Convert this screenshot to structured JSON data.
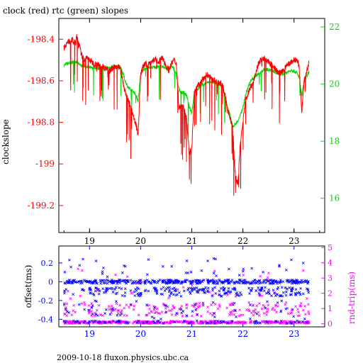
{
  "title": "clock (red) rtc (green) slopes",
  "footer": "2009-10-18 fluxon.physics.ubc.ca",
  "colors": {
    "clock": "#ff0000",
    "rtc": "#00dd00",
    "offset": "#0000ff",
    "rtt": "#ff00ff",
    "axis": "#000000"
  },
  "chart_data": [
    {
      "type": "line",
      "title": "clock (red) rtc (green) slopes",
      "ylabel": "clockslope",
      "x_ticks": [
        "19",
        "20",
        "21",
        "22",
        "23"
      ],
      "xlim": [
        18.4,
        23.6
      ],
      "y_left": {
        "ticks": [
          "-198.4",
          "-198.6",
          "-198.8",
          "-199",
          "-199.2"
        ],
        "tick_values": [
          -198.4,
          -198.6,
          -198.8,
          -199,
          -199.2
        ],
        "range": [
          -199.33,
          -198.3
        ]
      },
      "y_right": {
        "ticks": [
          "22",
          "20",
          "18",
          "16"
        ],
        "tick_values": [
          22,
          20,
          18,
          16
        ],
        "range": [
          14.8,
          22.3
        ]
      },
      "series": [
        {
          "name": "clock",
          "color": "#ff0000",
          "x": [
            18.5,
            18.55,
            18.6,
            18.65,
            18.7,
            18.75,
            18.8,
            18.85,
            18.9,
            18.95,
            19.0,
            19.05,
            19.1,
            19.15,
            19.2,
            19.25,
            19.3,
            19.35,
            19.4,
            19.45,
            19.5,
            19.55,
            19.6,
            19.65,
            19.7,
            19.75,
            19.8,
            19.85,
            19.9,
            19.95,
            20.0,
            20.05,
            20.1,
            20.15,
            20.2,
            20.25,
            20.3,
            20.35,
            20.4,
            20.45,
            20.5,
            20.55,
            20.6,
            20.65,
            20.7,
            20.75,
            20.8,
            20.85,
            20.9,
            20.95,
            21.0,
            21.05,
            21.1,
            21.15,
            21.2,
            21.25,
            21.3,
            21.35,
            21.4,
            21.45,
            21.5,
            21.55,
            21.6,
            21.65,
            21.7,
            21.75,
            21.8,
            21.85,
            21.9,
            21.95,
            22.0,
            22.05,
            22.1,
            22.15,
            22.2,
            22.25,
            22.3,
            22.35,
            22.4,
            22.45,
            22.5,
            22.55,
            22.6,
            22.65,
            22.7,
            22.75,
            22.8,
            22.85,
            22.9,
            22.95,
            23.0,
            23.05,
            23.1,
            23.15,
            23.2,
            23.25,
            23.3
          ],
          "y": [
            -198.44,
            -198.42,
            -198.41,
            -198.4,
            -198.42,
            -198.39,
            -198.43,
            -198.48,
            -198.5,
            -198.49,
            -198.5,
            -198.51,
            -198.52,
            -198.52,
            -198.53,
            -198.53,
            -198.54,
            -198.54,
            -198.55,
            -198.54,
            -198.53,
            -198.53,
            -198.54,
            -198.6,
            -198.66,
            -198.69,
            -198.72,
            -198.77,
            -198.8,
            -198.86,
            -198.57,
            -198.53,
            -198.52,
            -198.52,
            -198.51,
            -198.5,
            -198.5,
            -198.51,
            -198.49,
            -198.5,
            -198.53,
            -198.55,
            -198.52,
            -198.5,
            -198.52,
            -198.73,
            -198.72,
            -198.73,
            -198.78,
            -198.95,
            -198.93,
            -198.66,
            -198.63,
            -198.62,
            -198.6,
            -198.58,
            -198.57,
            -198.58,
            -198.59,
            -198.6,
            -198.61,
            -198.61,
            -198.62,
            -198.67,
            -198.74,
            -198.78,
            -198.83,
            -199.05,
            -199.1,
            -198.9,
            -198.8,
            -198.69,
            -198.66,
            -198.63,
            -198.61,
            -198.57,
            -198.52,
            -198.5,
            -198.49,
            -198.5,
            -198.51,
            -198.52,
            -198.53,
            -198.55,
            -198.56,
            -198.56,
            -198.55,
            -198.53,
            -198.52,
            -198.51,
            -198.5,
            -198.5,
            -198.53,
            -198.75,
            -198.6,
            -198.55,
            -198.51
          ]
        },
        {
          "name": "rtc",
          "color": "#00dd00",
          "x": [
            18.5,
            18.55,
            18.6,
            18.65,
            18.7,
            18.75,
            18.8,
            18.85,
            18.9,
            18.95,
            19.0,
            19.05,
            19.1,
            19.15,
            19.2,
            19.25,
            19.3,
            19.35,
            19.4,
            19.45,
            19.5,
            19.55,
            19.6,
            19.65,
            19.7,
            19.75,
            19.8,
            19.85,
            19.9,
            19.95,
            20.0,
            20.05,
            20.1,
            20.15,
            20.2,
            20.25,
            20.3,
            20.35,
            20.4,
            20.45,
            20.5,
            20.55,
            20.6,
            20.65,
            20.7,
            20.75,
            20.8,
            20.85,
            20.9,
            20.95,
            21.0,
            21.05,
            21.1,
            21.15,
            21.2,
            21.25,
            21.3,
            21.35,
            21.4,
            21.45,
            21.5,
            21.55,
            21.6,
            21.65,
            21.7,
            21.75,
            21.8,
            21.85,
            21.9,
            21.95,
            22.0,
            22.05,
            22.1,
            22.15,
            22.2,
            22.25,
            22.3,
            22.35,
            22.4,
            22.45,
            22.5,
            22.55,
            22.6,
            22.65,
            22.7,
            22.75,
            22.8,
            22.85,
            22.9,
            22.95,
            23.0,
            23.05,
            23.1,
            23.15,
            23.2,
            23.25,
            23.3
          ],
          "y": [
            20.65,
            20.72,
            20.72,
            20.75,
            20.8,
            20.78,
            20.68,
            20.64,
            20.62,
            20.6,
            20.58,
            20.56,
            20.57,
            20.56,
            20.55,
            20.56,
            20.57,
            20.57,
            20.58,
            20.59,
            20.6,
            20.61,
            20.6,
            20.4,
            20.1,
            19.9,
            19.8,
            19.75,
            19.65,
            19.4,
            20.4,
            20.5,
            20.55,
            20.57,
            20.58,
            20.59,
            20.6,
            20.61,
            20.62,
            20.6,
            20.55,
            20.59,
            20.6,
            20.58,
            20.3,
            19.8,
            19.7,
            19.7,
            19.6,
            19.2,
            19.0,
            19.7,
            19.8,
            19.88,
            19.95,
            20.0,
            20.05,
            20.07,
            20.06,
            20.05,
            20.02,
            20.0,
            19.85,
            19.6,
            19.2,
            18.9,
            18.5,
            18.6,
            18.7,
            18.9,
            19.2,
            19.6,
            19.9,
            20.1,
            20.2,
            20.3,
            20.35,
            20.4,
            20.5,
            20.52,
            20.51,
            20.48,
            20.45,
            20.4,
            20.35,
            20.33,
            20.35,
            20.4,
            20.45,
            20.5,
            20.45,
            20.4,
            20.25,
            19.6,
            20.1,
            20.3,
            20.45
          ]
        }
      ]
    },
    {
      "type": "scatter",
      "ylabel_left": "offset(ms)",
      "ylabel_right": "rnd-trip(ms)",
      "x_ticks": [
        "19",
        "20",
        "21",
        "22",
        "23"
      ],
      "xlim": [
        18.4,
        23.6
      ],
      "y_left": {
        "ticks": [
          "0.2",
          "0",
          "-0.2",
          "-0.4"
        ],
        "tick_values": [
          0.2,
          0,
          -0.2,
          -0.4
        ],
        "range": [
          -0.48,
          0.38
        ]
      },
      "y_right": {
        "ticks": [
          "5",
          "4",
          "3",
          "2",
          "1",
          "0"
        ],
        "tick_values": [
          5,
          4,
          3,
          2,
          1,
          0
        ],
        "range": [
          -0.2,
          5.1
        ]
      },
      "series": [
        {
          "name": "offset",
          "color": "#0000ff",
          "marker": "x",
          "level_bands": [
            0.0,
            -0.08,
            -0.12,
            -0.3,
            -0.43
          ],
          "x_range": [
            18.5,
            23.3
          ]
        },
        {
          "name": "rnd-trip",
          "color": "#ff00ff",
          "marker": "x",
          "level_bands": [
            0.1,
            0.8,
            2.6
          ],
          "x_range": [
            18.5,
            23.3
          ]
        }
      ]
    }
  ]
}
